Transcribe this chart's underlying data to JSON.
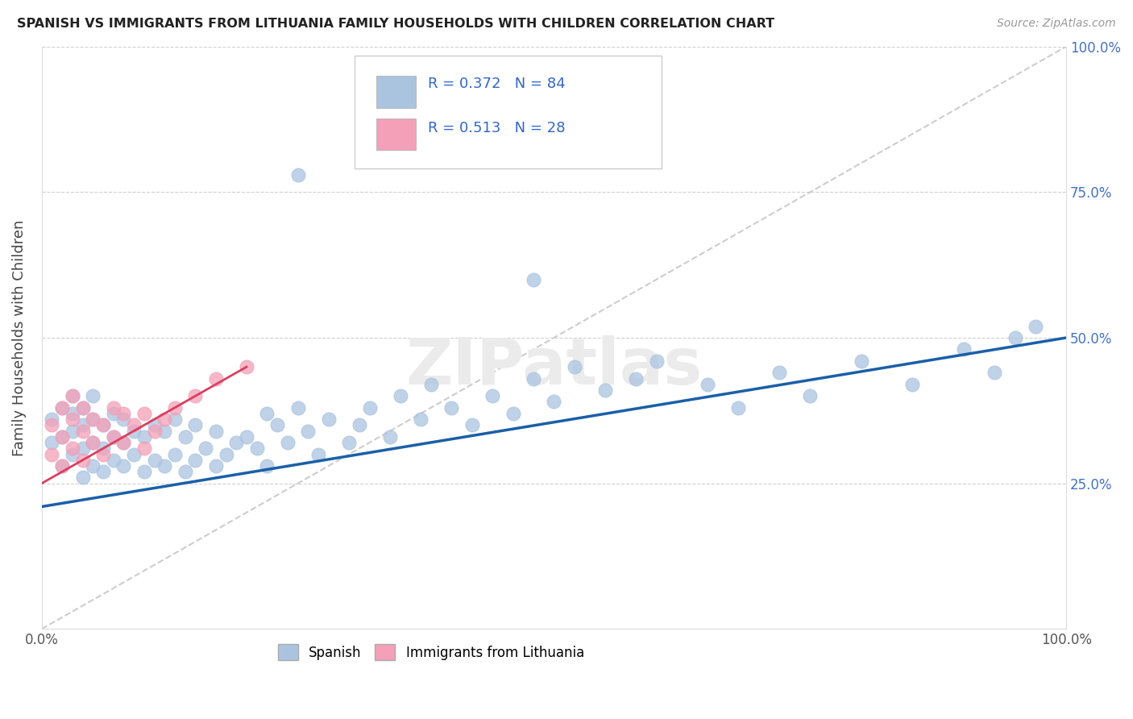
{
  "title": "SPANISH VS IMMIGRANTS FROM LITHUANIA FAMILY HOUSEHOLDS WITH CHILDREN CORRELATION CHART",
  "source": "Source: ZipAtlas.com",
  "ylabel": "Family Households with Children",
  "xlim": [
    0,
    1.0
  ],
  "ylim": [
    0,
    1.0
  ],
  "right_yticks": [
    0.0,
    0.25,
    0.5,
    0.75,
    1.0
  ],
  "right_yticklabels": [
    "",
    "25.0%",
    "50.0%",
    "75.0%",
    "100.0%"
  ],
  "xticklabels_show": [
    "0.0%",
    "100.0%"
  ],
  "legend1_label": "Spanish",
  "legend2_label": "Immigrants from Lithuania",
  "R1": 0.372,
  "N1": 84,
  "R2": 0.513,
  "N2": 28,
  "color_blue": "#aac4e0",
  "color_pink": "#f4a0b8",
  "line_blue": "#1a5fa8",
  "line_pink": "#d94060",
  "watermark": "ZIPatlas",
  "spanish_x": [
    0.01,
    0.01,
    0.02,
    0.02,
    0.02,
    0.03,
    0.03,
    0.03,
    0.03,
    0.04,
    0.04,
    0.04,
    0.04,
    0.05,
    0.05,
    0.05,
    0.05,
    0.06,
    0.06,
    0.06,
    0.07,
    0.07,
    0.07,
    0.08,
    0.08,
    0.08,
    0.09,
    0.09,
    0.1,
    0.1,
    0.11,
    0.11,
    0.12,
    0.12,
    0.13,
    0.13,
    0.14,
    0.14,
    0.15,
    0.15,
    0.16,
    0.17,
    0.17,
    0.18,
    0.19,
    0.2,
    0.21,
    0.22,
    0.22,
    0.23,
    0.24,
    0.25,
    0.26,
    0.27,
    0.28,
    0.3,
    0.31,
    0.32,
    0.34,
    0.35,
    0.37,
    0.38,
    0.4,
    0.42,
    0.44,
    0.46,
    0.48,
    0.5,
    0.52,
    0.55,
    0.58,
    0.6,
    0.65,
    0.68,
    0.72,
    0.75,
    0.8,
    0.85,
    0.9,
    0.93,
    0.95,
    0.97,
    0.25,
    0.48
  ],
  "spanish_y": [
    0.32,
    0.36,
    0.28,
    0.33,
    0.38,
    0.3,
    0.34,
    0.37,
    0.4,
    0.26,
    0.31,
    0.35,
    0.38,
    0.28,
    0.32,
    0.36,
    0.4,
    0.27,
    0.31,
    0.35,
    0.29,
    0.33,
    0.37,
    0.28,
    0.32,
    0.36,
    0.3,
    0.34,
    0.27,
    0.33,
    0.29,
    0.35,
    0.28,
    0.34,
    0.3,
    0.36,
    0.27,
    0.33,
    0.29,
    0.35,
    0.31,
    0.28,
    0.34,
    0.3,
    0.32,
    0.33,
    0.31,
    0.37,
    0.28,
    0.35,
    0.32,
    0.38,
    0.34,
    0.3,
    0.36,
    0.32,
    0.35,
    0.38,
    0.33,
    0.4,
    0.36,
    0.42,
    0.38,
    0.35,
    0.4,
    0.37,
    0.43,
    0.39,
    0.45,
    0.41,
    0.43,
    0.46,
    0.42,
    0.38,
    0.44,
    0.4,
    0.46,
    0.42,
    0.48,
    0.44,
    0.5,
    0.52,
    0.78,
    0.6
  ],
  "lithuania_x": [
    0.01,
    0.01,
    0.02,
    0.02,
    0.02,
    0.03,
    0.03,
    0.03,
    0.04,
    0.04,
    0.04,
    0.05,
    0.05,
    0.06,
    0.06,
    0.07,
    0.07,
    0.08,
    0.08,
    0.09,
    0.1,
    0.1,
    0.11,
    0.12,
    0.13,
    0.15,
    0.17,
    0.2
  ],
  "lithuania_y": [
    0.3,
    0.35,
    0.28,
    0.33,
    0.38,
    0.31,
    0.36,
    0.4,
    0.29,
    0.34,
    0.38,
    0.32,
    0.36,
    0.3,
    0.35,
    0.33,
    0.38,
    0.32,
    0.37,
    0.35,
    0.31,
    0.37,
    0.34,
    0.36,
    0.38,
    0.4,
    0.43,
    0.45
  ],
  "blue_line_x": [
    0.0,
    1.0
  ],
  "blue_line_y": [
    0.21,
    0.5
  ],
  "pink_line_x": [
    0.0,
    0.2
  ],
  "pink_line_y": [
    0.25,
    0.45
  ],
  "diag_line_x": [
    0.0,
    1.0
  ],
  "diag_line_y": [
    0.0,
    1.0
  ]
}
